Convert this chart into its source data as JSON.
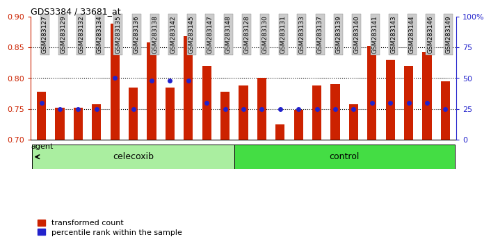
{
  "title": "GDS3384 / 33681_at",
  "samples": [
    "GSM283127",
    "GSM283129",
    "GSM283132",
    "GSM283134",
    "GSM283135",
    "GSM283136",
    "GSM283138",
    "GSM283142",
    "GSM283145",
    "GSM283147",
    "GSM283148",
    "GSM283128",
    "GSM283130",
    "GSM283131",
    "GSM283133",
    "GSM283137",
    "GSM283139",
    "GSM283140",
    "GSM283141",
    "GSM283143",
    "GSM283144",
    "GSM283146",
    "GSM283149"
  ],
  "transformed_count": [
    0.778,
    0.752,
    0.752,
    0.757,
    0.888,
    0.785,
    0.858,
    0.785,
    0.868,
    0.82,
    0.778,
    0.788,
    0.8,
    0.725,
    0.748,
    0.788,
    0.79,
    0.757,
    0.852,
    0.83,
    0.82,
    0.842,
    0.795
  ],
  "percentile_rank": [
    30,
    25,
    25,
    25,
    50,
    25,
    48,
    48,
    48,
    30,
    25,
    25,
    25,
    25,
    25,
    25,
    25,
    25,
    30,
    30,
    30,
    30,
    25
  ],
  "celecoxib_count": 11,
  "control_count": 12,
  "ylim_left": [
    0.7,
    0.9
  ],
  "ylim_right": [
    0,
    100
  ],
  "yticks_left": [
    0.7,
    0.75,
    0.8,
    0.85,
    0.9
  ],
  "yticks_right": [
    0,
    25,
    50,
    75,
    100
  ],
  "ytick_right_labels": [
    "0",
    "25",
    "50",
    "75",
    "100%"
  ],
  "bar_color": "#CC2200",
  "dot_color": "#2222CC",
  "celecoxib_color": "#AAEEA0",
  "control_color": "#44DD44",
  "grid_color": "#000000",
  "bg_color": "#FFFFFF",
  "tick_label_bg": "#CCCCCC"
}
